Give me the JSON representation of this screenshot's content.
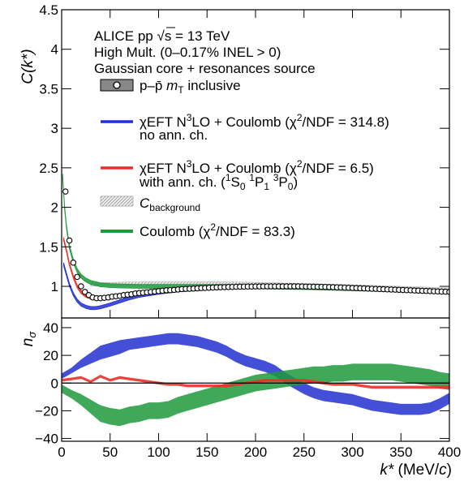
{
  "chart_data": [
    {
      "type": "line",
      "panel": "top",
      "ylabel": "C(k*)",
      "xlim": [
        0,
        400
      ],
      "ylim": [
        0.6,
        4.5
      ],
      "yticks": [
        1,
        1.5,
        2,
        2.5,
        3,
        3.5,
        4,
        4.5
      ],
      "ytick_labels": [
        "1",
        "1.5",
        "2",
        "2.5",
        "3",
        "3.5",
        "4",
        "4.5"
      ],
      "annotations": [
        "ALICE pp √s = 13 TeV",
        "High Mult. (0–0.17% INEL > 0)",
        "Gaussian core + resonances source"
      ],
      "legend": [
        {
          "label": "p–p̄ mT inclusive",
          "style": "marker-box"
        },
        {
          "label": "χEFT N³LO + Coulomb (χ²/NDF = 314.8)",
          "sublabel": "no ann. ch.",
          "color": "#2230d0"
        },
        {
          "label": "χEFT N³LO + Coulomb (χ²/NDF = 6.5)",
          "sublabel": "with ann. ch. (¹S₀ ¹P₁ ³P₀)",
          "color": "#e8302a"
        },
        {
          "label": "C_background",
          "style": "hatched-box"
        },
        {
          "label": "Coulomb (χ²/NDF = 83.3)",
          "color": "#1e9a3c"
        }
      ],
      "series": [
        {
          "name": "p–p̄ mT inclusive",
          "kind": "points",
          "x": [
            4,
            8,
            12,
            16,
            20,
            24,
            28,
            32,
            36,
            40,
            44,
            48,
            52,
            56,
            60,
            64,
            68,
            72,
            76,
            80,
            84,
            88,
            92,
            96,
            100,
            104,
            108,
            112,
            116,
            120,
            124,
            128,
            132,
            136,
            140,
            144,
            148,
            152,
            156,
            160,
            164,
            168,
            172,
            176,
            180,
            184,
            188,
            192,
            196,
            200,
            204,
            208,
            212,
            216,
            220,
            224,
            228,
            232,
            236,
            240,
            244,
            248,
            252,
            256,
            260,
            264,
            268,
            272,
            276,
            280,
            284,
            288,
            292,
            296,
            300,
            304,
            308,
            312,
            316,
            320,
            324,
            328,
            332,
            336,
            340,
            344,
            348,
            352,
            356,
            360,
            364,
            368,
            372,
            376,
            380,
            384,
            388,
            392,
            396,
            400
          ],
          "y": [
            2.2,
            1.58,
            1.3,
            1.12,
            1.0,
            0.93,
            0.89,
            0.86,
            0.85,
            0.85,
            0.855,
            0.86,
            0.87,
            0.875,
            0.88,
            0.89,
            0.895,
            0.9,
            0.91,
            0.915,
            0.92,
            0.925,
            0.93,
            0.935,
            0.94,
            0.945,
            0.95,
            0.952,
            0.955,
            0.96,
            0.965,
            0.968,
            0.97,
            0.972,
            0.975,
            0.978,
            0.98,
            0.982,
            0.985,
            0.987,
            0.989,
            0.99,
            0.992,
            0.993,
            0.995,
            0.996,
            0.997,
            0.998,
            0.998,
            0.999,
            0.999,
            1.0,
            1.0,
            1.0,
            1.0,
            1.0,
            1.0,
            1.0,
            1.0,
            1.0,
            1.0,
            0.999,
            0.998,
            0.997,
            0.996,
            0.995,
            0.994,
            0.993,
            0.991,
            0.99,
            0.988,
            0.986,
            0.984,
            0.982,
            0.98,
            0.978,
            0.976,
            0.974,
            0.972,
            0.97,
            0.968,
            0.966,
            0.964,
            0.962,
            0.96,
            0.958,
            0.956,
            0.954,
            0.952,
            0.95,
            0.948,
            0.946,
            0.944,
            0.942,
            0.94,
            0.938,
            0.936,
            0.934,
            0.932,
            0.93
          ]
        },
        {
          "name": "χEFT N³LO + Coulomb (χ²/NDF = 314.8)",
          "kind": "band",
          "color": "#2230d0",
          "x": [
            2,
            5,
            8,
            12,
            16,
            20,
            25,
            30,
            35,
            40,
            50,
            60,
            70,
            80,
            100,
            120,
            150,
            180,
            200,
            250,
            300,
            350,
            400
          ],
          "y": [
            1.28,
            1.15,
            1.02,
            0.9,
            0.82,
            0.77,
            0.74,
            0.725,
            0.725,
            0.735,
            0.77,
            0.81,
            0.85,
            0.88,
            0.92,
            0.95,
            0.975,
            0.99,
            0.995,
            0.995,
            0.975,
            0.955,
            0.935
          ],
          "width": 0.02
        },
        {
          "name": "χEFT N³LO + Coulomb (χ²/NDF = 6.5)",
          "kind": "band",
          "color": "#e8302a",
          "x": [
            2,
            5,
            8,
            12,
            16,
            20,
            25,
            30,
            35,
            40,
            50,
            60,
            70,
            80,
            100,
            120,
            150,
            180,
            200,
            250,
            300,
            350,
            400
          ],
          "y": [
            1.6,
            1.45,
            1.28,
            1.12,
            1.0,
            0.93,
            0.88,
            0.86,
            0.85,
            0.85,
            0.86,
            0.88,
            0.9,
            0.915,
            0.94,
            0.96,
            0.98,
            0.99,
            0.995,
            1.0,
            0.985,
            0.96,
            0.935
          ],
          "width": 0.02
        },
        {
          "name": "C_background",
          "kind": "band",
          "color": "#c8c8c8",
          "x": [
            30,
            50,
            100,
            150,
            200,
            250,
            300,
            350,
            400
          ],
          "y": [
            1.02,
            1.03,
            1.04,
            1.04,
            1.03,
            1.015,
            1.0,
            0.98,
            0.96
          ],
          "width": 0.02
        },
        {
          "name": "Coulomb (χ²/NDF = 83.3)",
          "kind": "band",
          "color": "#1e9a3c",
          "x": [
            1,
            3,
            5,
            8,
            12,
            16,
            20,
            25,
            30,
            40,
            50,
            60,
            80,
            100,
            150,
            200,
            250,
            300,
            350,
            400
          ],
          "y": [
            2.4,
            2.0,
            1.75,
            1.5,
            1.32,
            1.2,
            1.13,
            1.08,
            1.05,
            1.02,
            1.01,
            1.005,
            1.0,
            1.0,
            1.0,
            0.995,
            0.985,
            0.97,
            0.955,
            0.935
          ],
          "width": 0.025
        }
      ]
    },
    {
      "type": "area",
      "panel": "bottom",
      "ylabel": "nσ",
      "xlabel": "k* (MeV/c)",
      "xlim": [
        0,
        400
      ],
      "ylim": [
        -42,
        47
      ],
      "xticks": [
        0,
        50,
        100,
        150,
        200,
        250,
        300,
        350,
        400
      ],
      "xtick_labels": [
        "0",
        "50",
        "100",
        "150",
        "200",
        "250",
        "300",
        "350",
        "400"
      ],
      "yticks": [
        -40,
        -20,
        0,
        20,
        40
      ],
      "ytick_labels": [
        "−40",
        "−20",
        "0",
        "20",
        "40"
      ],
      "series": [
        {
          "name": "χEFT N³LO + Coulomb (χ²/NDF = 314.8)",
          "color": "#2230d0",
          "x": [
            0,
            10,
            20,
            30,
            40,
            50,
            60,
            70,
            80,
            90,
            100,
            110,
            120,
            130,
            140,
            150,
            160,
            170,
            180,
            190,
            200,
            210,
            220,
            230,
            240,
            250,
            260,
            270,
            280,
            290,
            300,
            310,
            320,
            330,
            340,
            350,
            360,
            370,
            380,
            390,
            400
          ],
          "center": [
            5,
            9,
            14,
            18,
            22,
            24,
            26,
            28,
            29,
            30,
            31,
            32,
            32,
            31,
            30,
            28,
            26,
            23,
            19,
            16,
            14,
            12,
            9,
            4,
            0,
            -4,
            -7,
            -9,
            -10,
            -11,
            -12,
            -14,
            -16,
            -17,
            -18,
            -19,
            -19,
            -19,
            -18,
            -15,
            -11
          ],
          "halfwidth": [
            2,
            2,
            3,
            4,
            5,
            5,
            5,
            4,
            4,
            4,
            4,
            4,
            4,
            4,
            4,
            4,
            4,
            4,
            4,
            4,
            4,
            4,
            4,
            4,
            4,
            4,
            4,
            4,
            4,
            4,
            4,
            4,
            4,
            4,
            4,
            4,
            4,
            4,
            4,
            4,
            4
          ]
        },
        {
          "name": "Coulomb (χ²/NDF = 83.3)",
          "color": "#1e9a3c",
          "x": [
            0,
            10,
            20,
            30,
            40,
            50,
            60,
            70,
            80,
            90,
            100,
            110,
            120,
            130,
            140,
            150,
            160,
            170,
            180,
            190,
            200,
            210,
            220,
            230,
            240,
            250,
            260,
            270,
            280,
            290,
            300,
            310,
            320,
            330,
            340,
            350,
            360,
            370,
            380,
            390,
            400
          ],
          "center": [
            -4,
            -8,
            -12,
            -17,
            -22,
            -24,
            -25,
            -23,
            -22,
            -20,
            -20,
            -19,
            -16,
            -14,
            -12,
            -10,
            -8,
            -6,
            -4,
            -2,
            0,
            1,
            2,
            3,
            4,
            5,
            6,
            6,
            7,
            7,
            8,
            8,
            8,
            8,
            8,
            7,
            6,
            5,
            4,
            2,
            1
          ],
          "halfwidth": [
            3,
            3,
            4,
            5,
            6,
            6,
            6,
            6,
            6,
            6,
            6,
            6,
            6,
            6,
            6,
            6,
            6,
            6,
            6,
            6,
            6,
            6,
            6,
            6,
            6,
            6,
            6,
            6,
            6,
            6,
            6,
            6,
            6,
            6,
            6,
            6,
            6,
            6,
            6,
            6,
            6
          ]
        },
        {
          "name": "χEFT N³LO + Coulomb (χ²/NDF = 6.5)",
          "color": "#e8302a",
          "x": [
            0,
            10,
            20,
            30,
            40,
            50,
            60,
            70,
            80,
            90,
            100,
            110,
            120,
            130,
            140,
            150,
            160,
            170,
            180,
            190,
            200,
            210,
            220,
            230,
            240,
            250,
            260,
            270,
            280,
            290,
            300,
            310,
            320,
            330,
            340,
            350,
            360,
            370,
            380,
            390,
            400
          ],
          "center": [
            2,
            3,
            4,
            1,
            5,
            2,
            4,
            3,
            2,
            1,
            0,
            -1,
            -1,
            -2,
            -2,
            -2,
            -2,
            -2,
            -1,
            0,
            1,
            2,
            2,
            2,
            2,
            2,
            1,
            0,
            -1,
            -1,
            -1,
            -2,
            -3,
            -3,
            -3,
            -3,
            -3,
            -3,
            -3,
            -3,
            -3
          ],
          "halfwidth": [
            1,
            1,
            1,
            1,
            1,
            1,
            1,
            1,
            1,
            1,
            1,
            1,
            1,
            1,
            1,
            1,
            1,
            1,
            1,
            1,
            1,
            1,
            1,
            1,
            1,
            1,
            1,
            1,
            1,
            1,
            1,
            1,
            1,
            1,
            1,
            1,
            1,
            1,
            1,
            1,
            1
          ]
        }
      ]
    }
  ]
}
